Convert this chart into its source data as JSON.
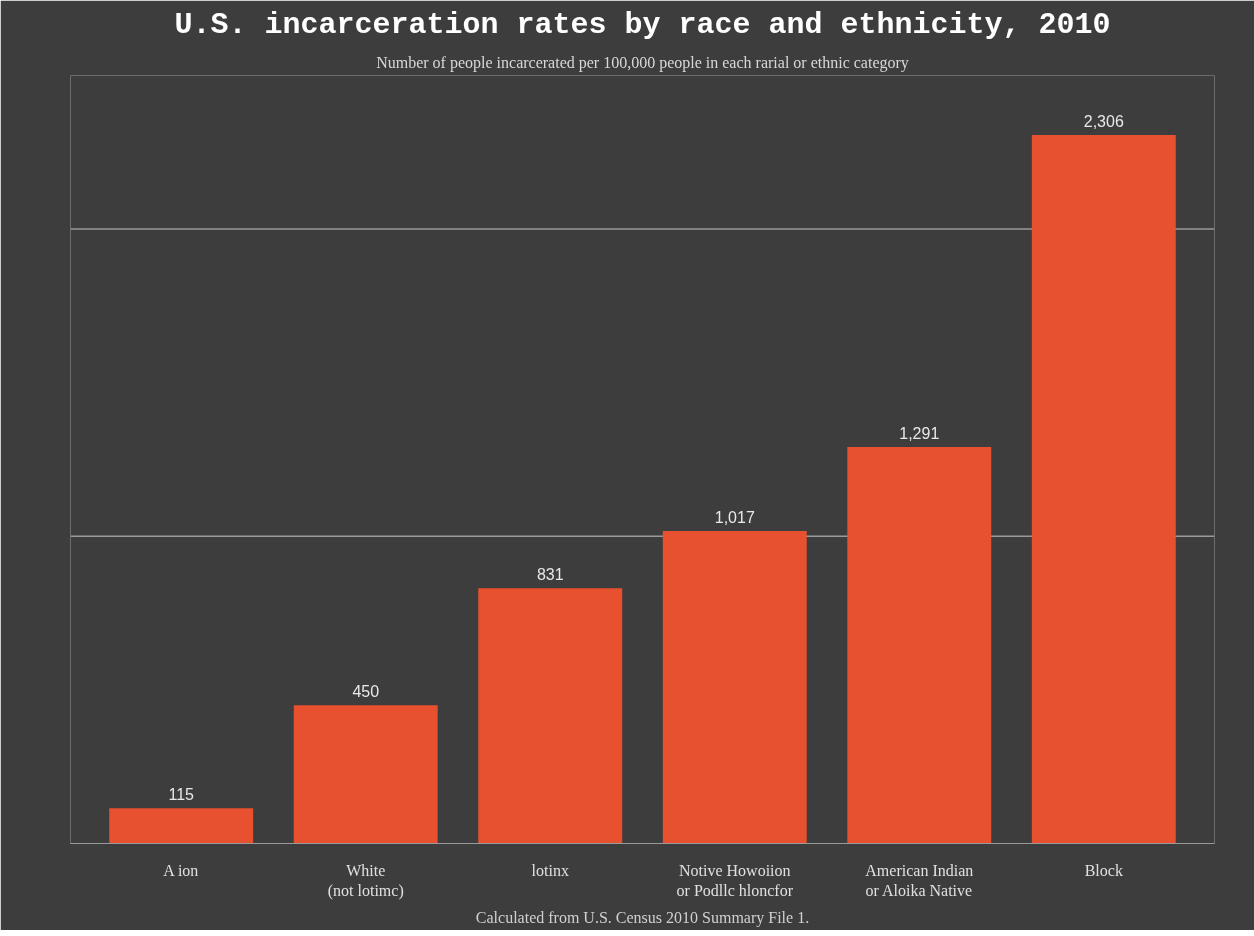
{
  "chart_data": {
    "type": "bar",
    "title": "U.S. incarceration rates by race and ethnicity, 2010",
    "subtitle": "Number of people incarcerated per 100,000 people in each rarial or ethnic category",
    "categories": [
      "A ion",
      "White\n(not lotimc)",
      "lotinx",
      "Notive Howoiion\nor Podllc hloncfor",
      "American Indian\nor Aloika Native",
      "Block"
    ],
    "values": [
      115,
      450,
      831,
      1017,
      1291,
      2306
    ],
    "color": "#e8512f",
    "value_labels": [
      "115",
      "450",
      "831",
      "1,017",
      "1,291",
      "2,306"
    ],
    "ylim": [
      0,
      2500
    ],
    "tick_labels": "x",
    "ref_lines": [
      {
        "axis": "y",
        "value": 1000,
        "color": "#9a9a9a"
      },
      {
        "axis": "y",
        "value": 2000,
        "color": "#9a9a9a"
      }
    ],
    "annotations": [
      "Calculated from U.S. Census 2010 Summary File 1."
    ]
  }
}
